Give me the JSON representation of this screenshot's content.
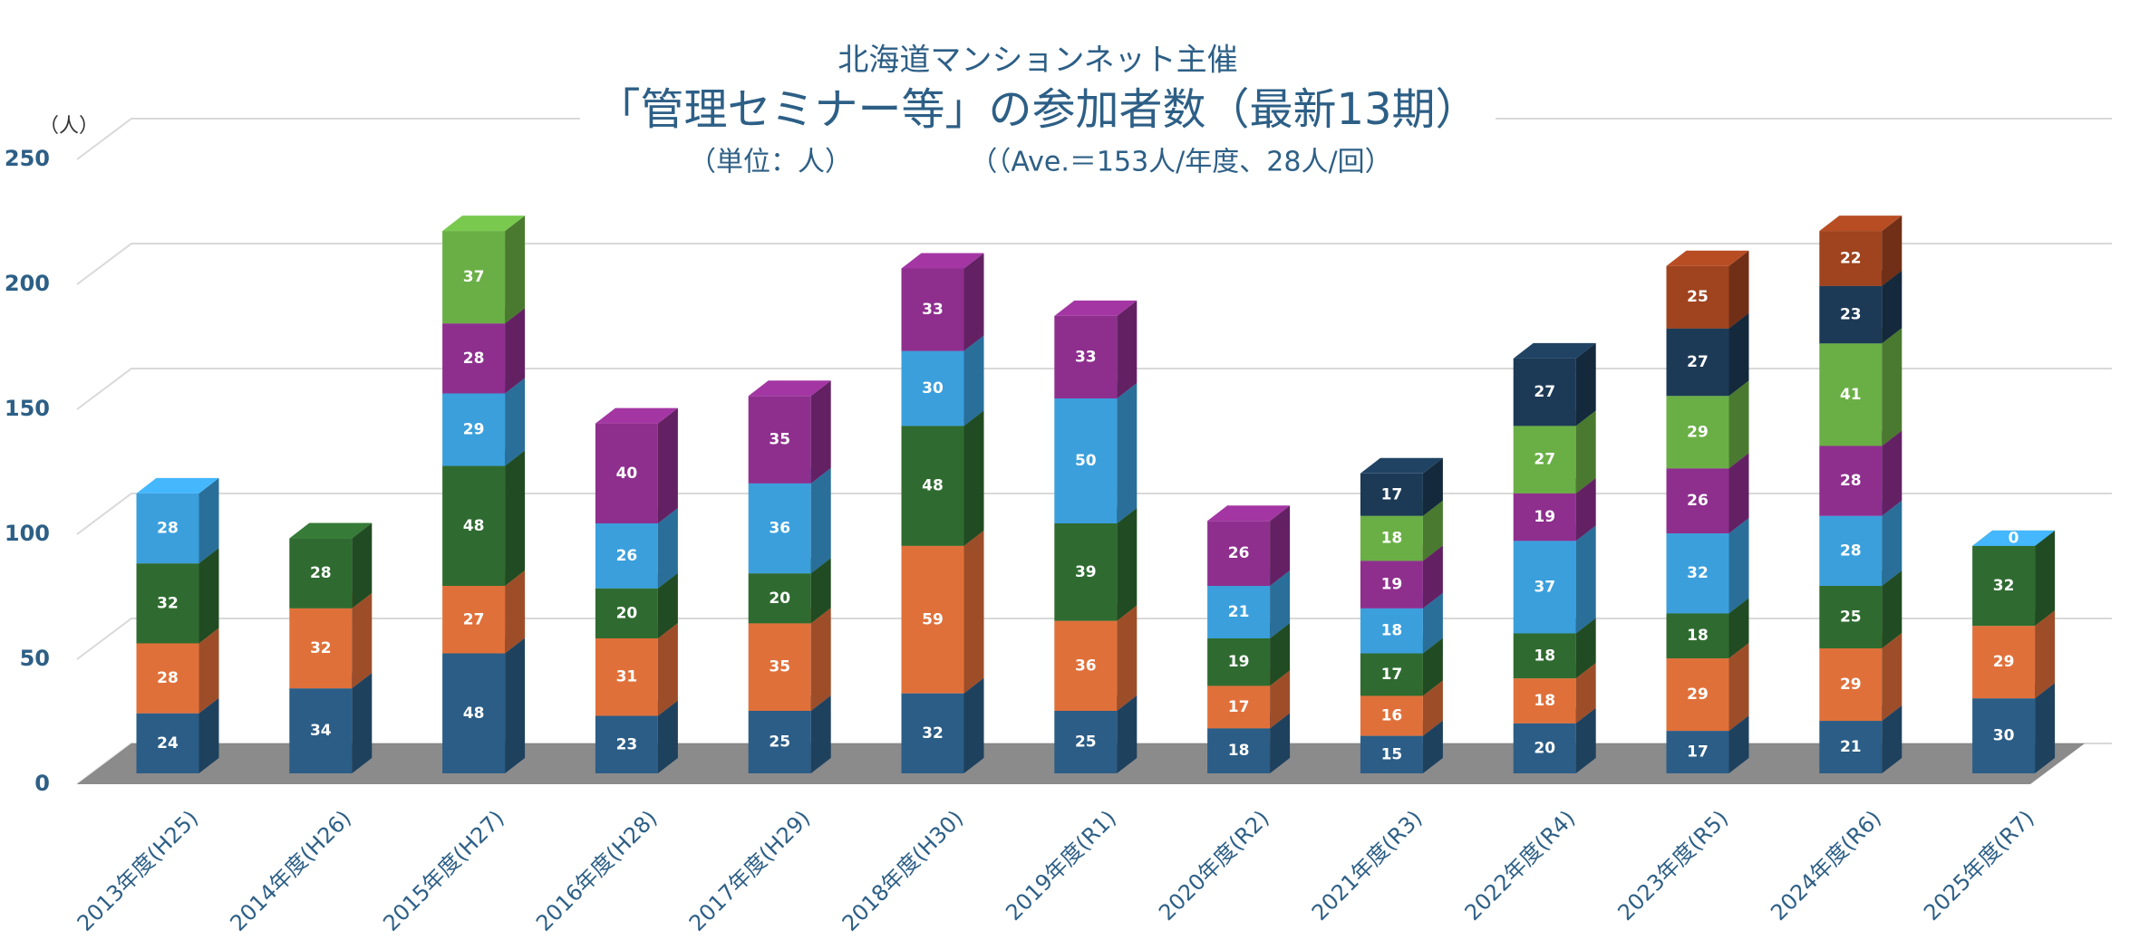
{
  "chart_data": {
    "type": "bar",
    "stacked": true,
    "pretitle": "北海道マンションネット主催",
    "title": "「管理セミナー等」の参加者数（最新13期）",
    "subtitle": "（単位：人）",
    "annotation": "（（Ave.＝153人/年度、28人/回）",
    "ylabel": "（人）",
    "categories": [
      "2013年度(H25)",
      "2014年度(H26)",
      "2015年度(H27)",
      "2016年度(H28)",
      "2017年度(H29)",
      "2018年度(H30)",
      "2019年度(R1)",
      "2020年度(R2)",
      "2021年度(R3)",
      "2022年度(R4)",
      "2023年度(R5)",
      "2024年度(R6)",
      "2025年度(R7)"
    ],
    "series": [
      {
        "color": "#2b5d86",
        "values": [
          24,
          34,
          48,
          23,
          25,
          32,
          25,
          18,
          15,
          20,
          17,
          21,
          30
        ]
      },
      {
        "color": "#e0703a",
        "values": [
          28,
          32,
          27,
          31,
          35,
          59,
          36,
          17,
          16,
          18,
          29,
          29,
          29
        ]
      },
      {
        "color": "#2f6b30",
        "values": [
          32,
          28,
          48,
          20,
          20,
          48,
          39,
          19,
          17,
          18,
          18,
          25,
          32
        ]
      },
      {
        "color": "#3b9fdc",
        "values": [
          28,
          null,
          29,
          26,
          36,
          30,
          50,
          21,
          18,
          37,
          32,
          28,
          0
        ]
      },
      {
        "color": "#8e2f8e",
        "values": [
          null,
          null,
          28,
          40,
          35,
          33,
          33,
          26,
          19,
          19,
          26,
          28,
          null
        ]
      },
      {
        "color": "#6aaf45",
        "values": [
          null,
          null,
          37,
          null,
          null,
          null,
          null,
          null,
          18,
          27,
          29,
          41,
          null
        ]
      },
      {
        "color": "#1c3a56",
        "values": [
          null,
          null,
          null,
          null,
          null,
          null,
          null,
          null,
          17,
          27,
          27,
          23,
          null
        ]
      },
      {
        "color": "#a0431f",
        "values": [
          null,
          null,
          null,
          null,
          null,
          null,
          null,
          null,
          null,
          null,
          25,
          22,
          null
        ]
      }
    ],
    "ylim": [
      0,
      250
    ],
    "yticks": [
      0,
      50,
      100,
      150,
      200,
      250
    ],
    "grid": true
  }
}
